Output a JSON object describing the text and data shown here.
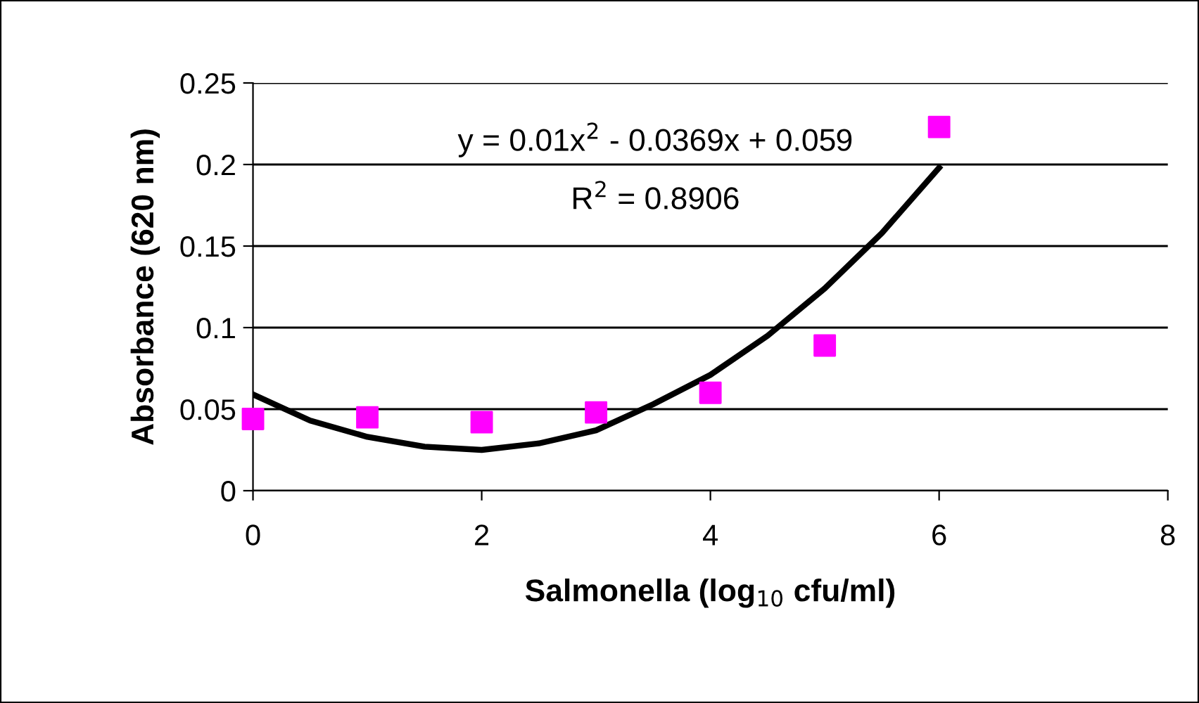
{
  "chart_data": {
    "type": "scatter",
    "xlabel": "Salmonella (log$_{10}$ cfu/ml)",
    "ylabel": "Absorbance (620 nm)",
    "series": [
      {
        "color": "#ff00ff",
        "marker": "square",
        "x": [
          0,
          1,
          2,
          3,
          4,
          5,
          6
        ],
        "values": [
          0.044,
          0.045,
          0.042,
          0.048,
          0.06,
          0.089,
          0.223
        ]
      },
      {
        "type": "line",
        "color": "#000000",
        "marker": "none",
        "line_style": "solid",
        "x": [
          0,
          0.5,
          1,
          1.5,
          2,
          2.5,
          3,
          3.5,
          4,
          4.5,
          5,
          5.5,
          6
        ],
        "values": [
          0.059,
          0.043,
          0.033,
          0.027,
          0.025,
          0.029,
          0.037,
          0.053,
          0.071,
          0.095,
          0.124,
          0.158,
          0.198
        ]
      }
    ],
    "annotations": [
      "y = 0.01x$^{2}$ - 0.0369x + 0.059",
      "R$^{2}$ = 0.8906"
    ],
    "xlim": [
      0,
      8
    ],
    "xticks": [
      0,
      2,
      4,
      6,
      8
    ],
    "ylim": [
      0,
      0.25
    ],
    "yticks": [
      0,
      0.05,
      0.1,
      0.15,
      0.2,
      0.25
    ],
    "grid": "y",
    "legend": false
  }
}
